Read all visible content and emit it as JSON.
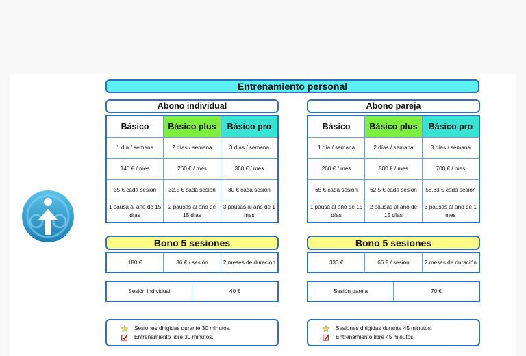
{
  "title": "Entrenamiento personal",
  "individual": {
    "subtitle": "Abono individual",
    "headers": [
      "Básico",
      "Básico plus",
      "Básico pro"
    ],
    "rows": [
      [
        "1 día / semana",
        "2 días / semana",
        "3 días / semana"
      ],
      [
        "140 € / mes",
        "260 € / mes",
        "360 € / mes"
      ],
      [
        "35 € cada sesión",
        "32.5 € cada sesión",
        "30 € cada sesión"
      ],
      [
        "1 pausa al año de 15 días",
        "2 pausas al año de 15 días",
        "3 pausas al año de 1 mes"
      ]
    ],
    "bono_title": "Bono 5 sesiones",
    "bono_cells": [
      "180 €",
      "36 € / sesión",
      "2 meses de duración"
    ],
    "session_label": "Sesión individual",
    "session_price": "40 €",
    "notes": [
      "Sesiones dirigidas durante 30 minutos.",
      "Entrenamiento libre 30 minutos."
    ]
  },
  "pareja": {
    "subtitle": "Abono pareja",
    "headers": [
      "Básico",
      "Básico plus",
      "Básico pro"
    ],
    "rows": [
      [
        "1 día / semana",
        "2 días / semana",
        "3 días / semana"
      ],
      [
        "260 € / mes",
        "500 € / mes",
        "700 € / mes"
      ],
      [
        "65 € cada sesión",
        "62.5 € cada sesión",
        "58.33 € cada sesión"
      ],
      [
        "1 pausa al año de 15 días",
        "2 pausas al año de 15 días",
        "3 pausas al año de 1 mes"
      ]
    ],
    "bono_title": "Bono 5 sesiones",
    "bono_cells": [
      "330 €",
      "66 € / sesión",
      "2 meses de duración"
    ],
    "session_label": "Sesión pareja",
    "session_price": "70 €",
    "notes": [
      "Sesiones dirigidas durante 45 minutos.",
      "Entrenamiento libre 45 minutos."
    ]
  },
  "icons": {
    "logo": "figure-upload-logo-icon",
    "note_1": "star-icon",
    "note_2": "checkbox-icon"
  },
  "colors": {
    "title_bg": "#5ef0f2",
    "plus_bg": "#7df03d",
    "pro_bg": "#39e3d3",
    "bono_bg": "#fbfb86",
    "border": "#2f6fbf"
  }
}
